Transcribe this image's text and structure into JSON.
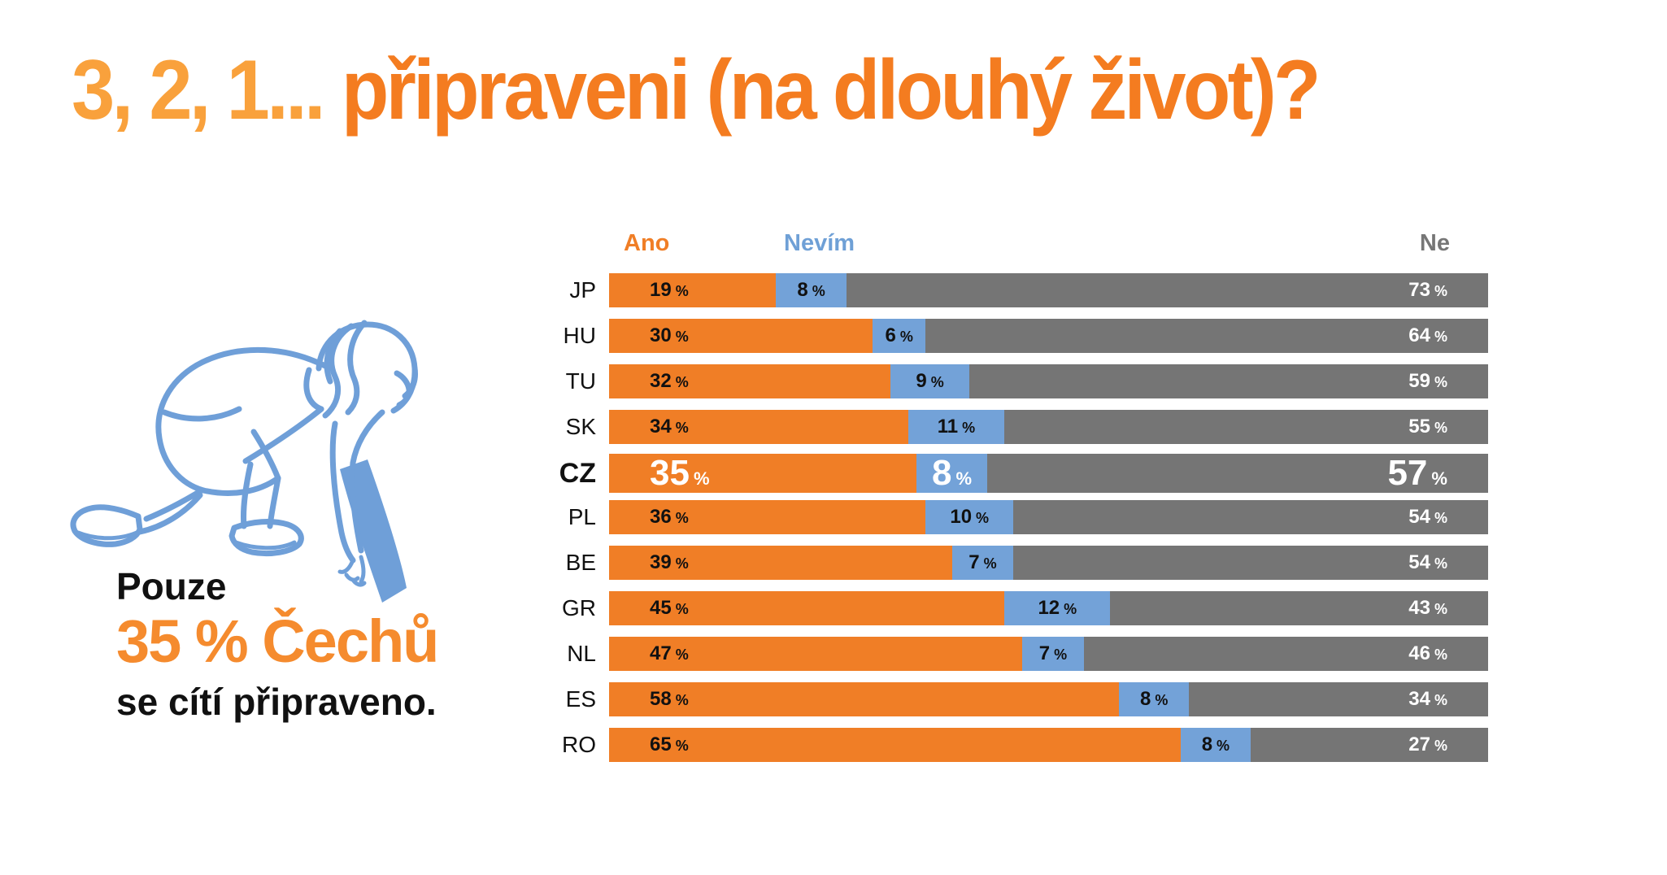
{
  "title": {
    "countdown": "3, 2, 1...",
    "rest": " připraveni (na dlouhý život)?"
  },
  "aside": {
    "line1": "Pouze",
    "line2": "35 % Čechů",
    "line3": "se cítí připraveno.",
    "illustration": "female-sprinter-in-crouch-start-line-drawing"
  },
  "labels": {
    "percent": "%"
  },
  "legend": {
    "ano": "Ano",
    "nevim": "Nevím",
    "ne": "Ne"
  },
  "colors": {
    "title_orange_light": "#F9A13C",
    "title_orange_dark": "#F47C20",
    "bar_orange": "#F07E26",
    "bar_blue": "#73A2D8",
    "bar_gray": "#757575",
    "aside_orange": "#F58B2E",
    "runner_blue": "#6F9FD8",
    "text_black": "#111111",
    "text_white": "#FFFFFF"
  },
  "chart_data": {
    "type": "bar",
    "orientation": "horizontal",
    "stacked": true,
    "unit": "%",
    "xlim": [
      0,
      100
    ],
    "grid": false,
    "legend_position": "top",
    "categories": [
      "JP",
      "HU",
      "TU",
      "SK",
      "CZ",
      "PL",
      "BE",
      "GR",
      "NL",
      "ES",
      "RO"
    ],
    "highlight_category": "CZ",
    "series": [
      {
        "name": "Ano",
        "color": "#F07E26",
        "values": [
          19,
          30,
          32,
          34,
          35,
          36,
          39,
          45,
          47,
          58,
          65
        ]
      },
      {
        "name": "Nevím",
        "color": "#73A2D8",
        "values": [
          8,
          6,
          9,
          11,
          8,
          10,
          7,
          12,
          7,
          8,
          8
        ]
      },
      {
        "name": "Ne",
        "color": "#757575",
        "values": [
          73,
          64,
          59,
          55,
          57,
          54,
          54,
          43,
          46,
          34,
          27
        ]
      }
    ]
  }
}
